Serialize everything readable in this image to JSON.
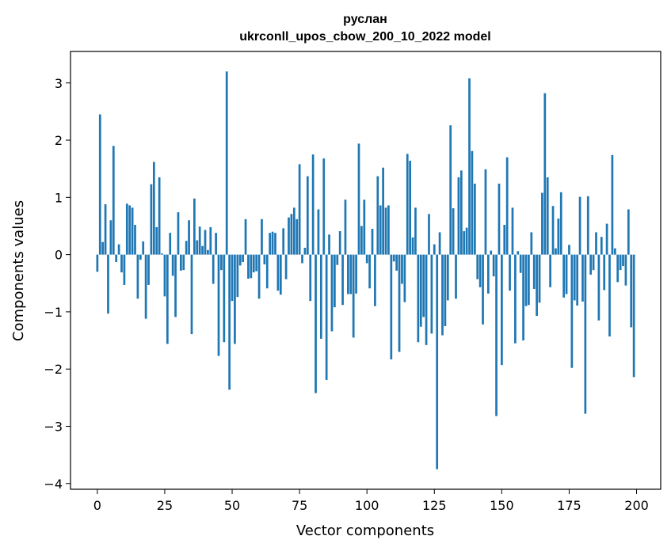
{
  "chart_data": {
    "type": "bar",
    "title": "руслан",
    "subtitle": "ukrconll_upos_cbow_200_10_2022 model",
    "xlabel": "Vector components",
    "ylabel": "Components values",
    "xlim": [
      -9.95,
      208.95
    ],
    "ylim": [
      -4.1,
      3.55
    ],
    "xticks": [
      0,
      25,
      50,
      75,
      100,
      125,
      150,
      175,
      200
    ],
    "xtick_labels": [
      "0",
      "25",
      "50",
      "75",
      "100",
      "125",
      "150",
      "175",
      "200"
    ],
    "yticks": [
      3,
      2,
      1,
      0,
      -1,
      -2,
      -3,
      -4
    ],
    "ytick_labels": [
      "3",
      "2",
      "1",
      "0",
      "−1",
      "−2",
      "−3",
      "−4"
    ],
    "grid": false,
    "bar_color": "#1f77b4",
    "values": [
      -0.3,
      2.45,
      0.22,
      0.88,
      -1.03,
      0.6,
      1.9,
      -0.13,
      0.18,
      -0.31,
      -0.53,
      0.89,
      0.86,
      0.82,
      0.52,
      -0.77,
      -0.09,
      0.23,
      -1.12,
      -0.53,
      1.23,
      1.62,
      0.48,
      1.35,
      0.02,
      -0.73,
      -1.56,
      0.38,
      -0.37,
      -1.09,
      0.74,
      -0.28,
      -0.27,
      0.24,
      0.6,
      -1.39,
      0.98,
      0.25,
      0.49,
      0.15,
      0.43,
      0.08,
      0.48,
      -0.51,
      0.38,
      -1.77,
      -0.27,
      -1.53,
      3.2,
      -2.36,
      -0.81,
      -1.56,
      -0.74,
      -0.19,
      -0.13,
      0.62,
      -0.42,
      -0.41,
      -0.31,
      -0.29,
      -0.77,
      0.62,
      -0.17,
      -0.59,
      0.38,
      0.4,
      0.38,
      -0.63,
      -0.7,
      0.46,
      -0.43,
      0.65,
      0.71,
      0.82,
      0.62,
      1.58,
      -0.15,
      0.12,
      1.37,
      -0.81,
      1.75,
      -2.42,
      0.79,
      -1.47,
      1.68,
      -2.19,
      0.35,
      -1.34,
      -0.92,
      -0.18,
      0.41,
      -0.88,
      0.96,
      -0.69,
      -0.69,
      -1.45,
      -0.68,
      1.94,
      0.5,
      0.96,
      -0.15,
      -0.59,
      0.45,
      -0.9,
      1.37,
      0.86,
      1.52,
      0.82,
      0.86,
      -1.83,
      -0.12,
      -0.28,
      -1.7,
      -0.51,
      -0.83,
      1.76,
      1.64,
      0.3,
      0.82,
      -1.53,
      -1.26,
      -1.09,
      -1.58,
      0.71,
      -1.38,
      0.18,
      -3.75,
      0.39,
      -1.41,
      -1.25,
      -0.8,
      2.26,
      0.81,
      -0.77,
      1.35,
      1.47,
      0.41,
      0.47,
      3.08,
      1.81,
      1.24,
      -0.43,
      -0.57,
      -1.22,
      1.49,
      -0.68,
      0.07,
      -0.38,
      -2.82,
      1.24,
      -1.93,
      0.52,
      1.7,
      -0.63,
      0.82,
      -1.55,
      0.06,
      -0.32,
      -1.5,
      -0.9,
      -0.88,
      0.39,
      -0.6,
      -1.07,
      -0.84,
      1.08,
      2.82,
      1.35,
      -0.57,
      0.85,
      0.11,
      0.63,
      1.09,
      -0.75,
      -0.69,
      0.17,
      -1.98,
      -0.8,
      -0.89,
      1.01,
      -0.82,
      -2.78,
      1.02,
      -0.35,
      -0.27,
      0.39,
      -1.15,
      0.31,
      -0.62,
      0.54,
      -1.43,
      1.74,
      0.11,
      -0.48,
      -0.27,
      -0.2,
      -0.54,
      0.79,
      -1.27,
      -2.14
    ]
  }
}
